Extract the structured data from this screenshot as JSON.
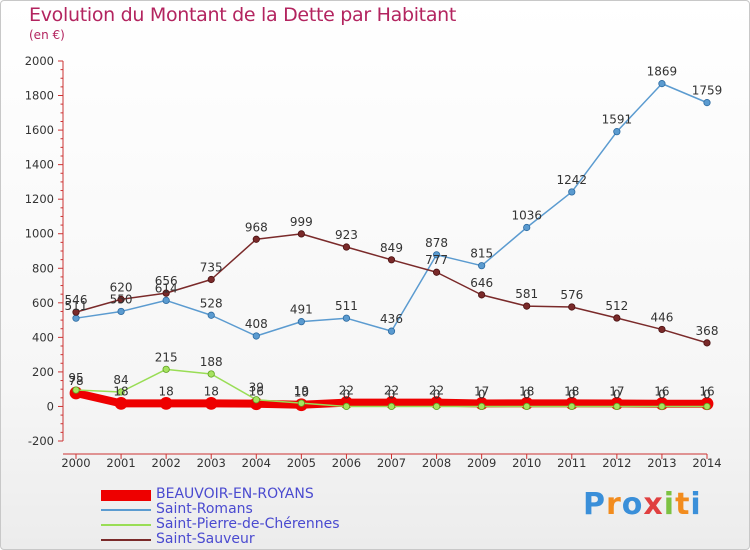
{
  "header": {
    "title": "Evolution du Montant de la Dette par Habitant",
    "subtitle": "(en €)"
  },
  "brand": {
    "text": "Proxiti",
    "colors": [
      "#3a8fd9",
      "#f28c1e",
      "#3a8fd9",
      "#e04040",
      "#7cc242",
      "#f28c1e",
      "#3a8fd9"
    ]
  },
  "colors": {
    "title": "#b3245f",
    "legend_text": "#4a4ad0"
  },
  "chart_data": {
    "type": "line",
    "title": "Evolution du Montant de la Dette par Habitant",
    "subtitle": "(en €)",
    "x": [
      2000,
      2001,
      2002,
      2003,
      2004,
      2005,
      2006,
      2007,
      2008,
      2009,
      2010,
      2011,
      2012,
      2013,
      2014
    ],
    "ylim": [
      -200,
      2000
    ],
    "yticks": [
      -200,
      0,
      200,
      400,
      600,
      800,
      1000,
      1200,
      1400,
      1600,
      1800,
      2000
    ],
    "grid": false,
    "legend_position": "bottom-left",
    "series": [
      {
        "name": "BEAUVOIR-EN-ROYANS",
        "color": "#ee0000",
        "values": [
          78,
          18,
          18,
          18,
          16,
          10,
          22,
          22,
          22,
          17,
          18,
          18,
          17,
          16,
          16
        ],
        "labels": [
          "78",
          "18",
          "18",
          "18",
          "16",
          "10",
          "22",
          "22",
          "22",
          "17",
          "18",
          "18",
          "17",
          "16",
          "16"
        ]
      },
      {
        "name": "Saint-Romans",
        "color": "#5b9bd0",
        "values": [
          511,
          550,
          614,
          528,
          408,
          491,
          511,
          436,
          878,
          815,
          1036,
          1242,
          1591,
          1869,
          1759
        ],
        "labels": [
          "511",
          "550",
          "614",
          "528",
          "408",
          "491",
          "511",
          "436",
          "878",
          "815",
          "1036",
          "1242",
          "1591",
          "1869",
          "1759"
        ]
      },
      {
        "name": "Saint-Pierre-de-Chérennes",
        "color": "#99dd55",
        "values": [
          95,
          84,
          215,
          188,
          39,
          19,
          0,
          0,
          0,
          0,
          0,
          0,
          0,
          0,
          0
        ],
        "labels": [
          "95",
          "84",
          "215",
          "188",
          "39",
          "19",
          "0",
          "0",
          "0",
          "0",
          "0",
          "0",
          "0",
          "0",
          "0"
        ]
      },
      {
        "name": "Saint-Sauveur",
        "color": "#7a2a2a",
        "values": [
          546,
          620,
          656,
          735,
          968,
          999,
          923,
          849,
          777,
          646,
          581,
          576,
          512,
          446,
          368
        ],
        "labels": [
          "546",
          "620",
          "656",
          "735",
          "968",
          "999",
          "923",
          "849",
          "777",
          "646",
          "581",
          "576",
          "512",
          "446",
          "368"
        ]
      }
    ]
  }
}
